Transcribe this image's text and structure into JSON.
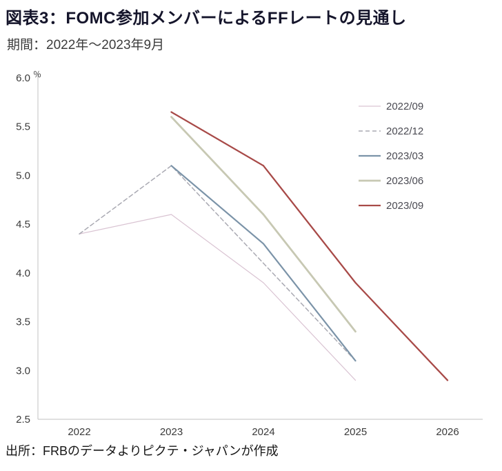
{
  "chart_data": {
    "type": "line",
    "title": "図表3：FOMC参加メンバーによるFFレートの見通し",
    "subtitle": "期間：2022年～2023年9月",
    "source": "出所：FRBのデータよりピクテ・ジャパンが作成",
    "ylabel_unit": "％",
    "grid": false,
    "legend_position": "top-right",
    "x_ticks": [
      2022,
      2023,
      2024,
      2025,
      2026
    ],
    "y_ticks": [
      2.5,
      3.0,
      3.5,
      4.0,
      4.5,
      5.0,
      5.5,
      6.0
    ],
    "ylim": [
      2.5,
      6.0
    ],
    "series": [
      {
        "name": "2022/09",
        "color": "#d9c3d2",
        "width": 1.2,
        "style": "solid",
        "x": [
          2022,
          2023,
          2024,
          2025
        ],
        "values": [
          4.4,
          4.6,
          3.9,
          2.9
        ]
      },
      {
        "name": "2022/12",
        "color": "#a9a9b2",
        "width": 1.5,
        "style": "dashed",
        "x": [
          2022,
          2023,
          2024,
          2025
        ],
        "values": [
          4.4,
          5.1,
          4.1,
          3.1
        ]
      },
      {
        "name": "2023/03",
        "color": "#7b93a8",
        "width": 2.2,
        "style": "solid",
        "x": [
          2023,
          2024,
          2025
        ],
        "values": [
          5.1,
          4.3,
          3.1
        ]
      },
      {
        "name": "2023/06",
        "color": "#c7c8b3",
        "width": 2.8,
        "style": "solid",
        "x": [
          2023,
          2024,
          2025
        ],
        "values": [
          5.6,
          4.6,
          3.4
        ]
      },
      {
        "name": "2023/09",
        "color": "#a84a48",
        "width": 2.3,
        "style": "solid",
        "x": [
          2023,
          2024,
          2025,
          2026
        ],
        "values": [
          5.65,
          5.1,
          3.9,
          2.9
        ]
      }
    ]
  }
}
